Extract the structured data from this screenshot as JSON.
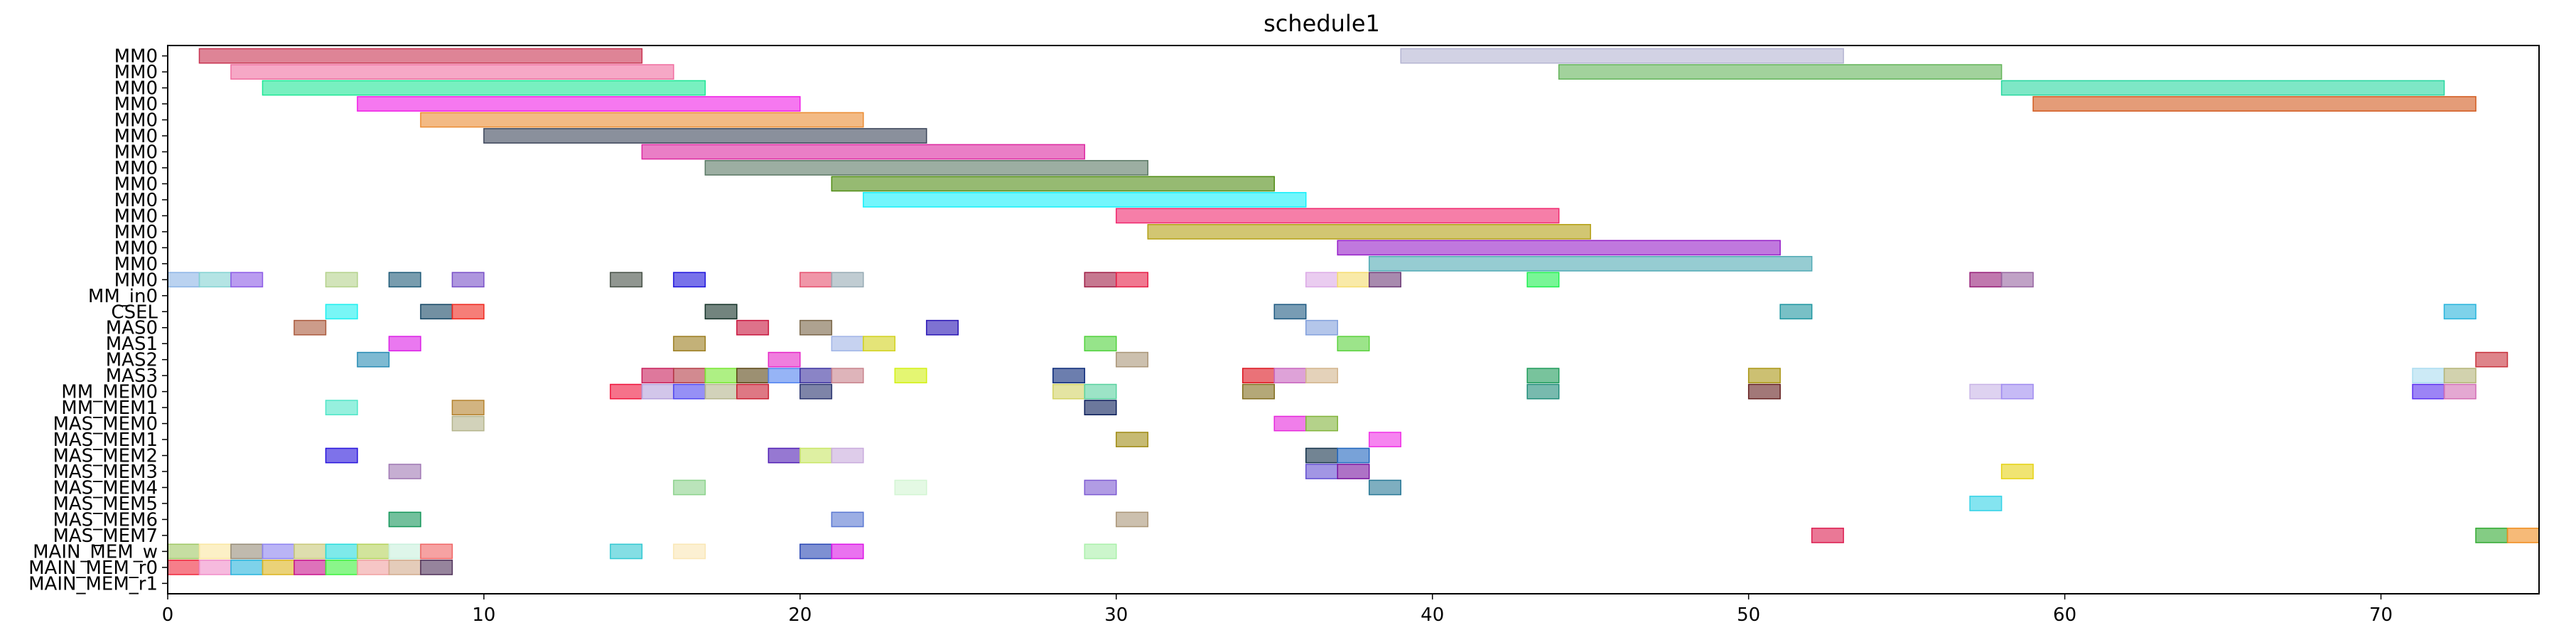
{
  "chart_data": {
    "type": "gantt",
    "title": "schedule1",
    "xlim": [
      0,
      75
    ],
    "x_ticks": [
      0,
      10,
      20,
      30,
      40,
      50,
      60,
      70
    ],
    "grid": false,
    "legend": "none",
    "rows": [
      "MM0",
      "MM0",
      "MM0",
      "MM0",
      "MM0",
      "MM0",
      "MM0",
      "MM0",
      "MM0",
      "MM0",
      "MM0",
      "MM0",
      "MM0",
      "MM0",
      "MM0",
      "MM_in0",
      "CSEL",
      "MAS0",
      "MAS1",
      "MAS2",
      "MAS3",
      "MM_MEM0",
      "MM_MEM1",
      "MAS_MEM0",
      "MAS_MEM1",
      "MAS_MEM2",
      "MAS_MEM3",
      "MAS_MEM4",
      "MAS_MEM5",
      "MAS_MEM6",
      "MAS_MEM7",
      "MAIN_MEM_w",
      "MAIN_MEM_r0",
      "MAIN_MEM_r1"
    ],
    "tasks": [
      {
        "row": 0,
        "start": 1,
        "end": 15,
        "color": "#c83250"
      },
      {
        "row": 0,
        "start": 39,
        "end": 53,
        "color": "#b4b4d2"
      },
      {
        "row": 1,
        "start": 2,
        "end": 16,
        "color": "#f06ea0"
      },
      {
        "row": 1,
        "start": 44,
        "end": 58,
        "color": "#64b45a"
      },
      {
        "row": 2,
        "start": 3,
        "end": 17,
        "color": "#1ee696"
      },
      {
        "row": 2,
        "start": 58,
        "end": 72,
        "color": "#28d7a0"
      },
      {
        "row": 3,
        "start": 6,
        "end": 20,
        "color": "#f01ee6"
      },
      {
        "row": 3,
        "start": 59,
        "end": 73,
        "color": "#d25a1e"
      },
      {
        "row": 4,
        "start": 8,
        "end": 22,
        "color": "#eb8c32"
      },
      {
        "row": 5,
        "start": 10,
        "end": 24,
        "color": "#3c465a"
      },
      {
        "row": 6,
        "start": 15,
        "end": 29,
        "color": "#dc28a0"
      },
      {
        "row": 7,
        "start": 17,
        "end": 31,
        "color": "#5a7864"
      },
      {
        "row": 8,
        "start": 21,
        "end": 35,
        "color": "#508c14"
      },
      {
        "row": 9,
        "start": 22,
        "end": 36,
        "color": "#14f0fa"
      },
      {
        "row": 10,
        "start": 30,
        "end": 44,
        "color": "#f0286e"
      },
      {
        "row": 11,
        "start": 31,
        "end": 45,
        "color": "#b4a014"
      },
      {
        "row": 12,
        "start": 37,
        "end": 51,
        "color": "#961ec8"
      },
      {
        "row": 13,
        "start": 38,
        "end": 52,
        "color": "#50aab4"
      },
      {
        "row": 14,
        "start": 0,
        "end": 1,
        "color": "#8cb4e6"
      },
      {
        "row": 14,
        "start": 1,
        "end": 2,
        "color": "#82d2d2"
      },
      {
        "row": 14,
        "start": 2,
        "end": 3,
        "color": "#8c5ae6"
      },
      {
        "row": 14,
        "start": 5,
        "end": 6,
        "color": "#b4d28c"
      },
      {
        "row": 14,
        "start": 7,
        "end": 8,
        "color": "#1e5a78"
      },
      {
        "row": 14,
        "start": 9,
        "end": 10,
        "color": "#7850c8"
      },
      {
        "row": 14,
        "start": 14,
        "end": 15,
        "color": "#465046"
      },
      {
        "row": 14,
        "start": 16,
        "end": 17,
        "color": "#1e14dc"
      },
      {
        "row": 14,
        "start": 20,
        "end": 21,
        "color": "#e6506e"
      },
      {
        "row": 14,
        "start": 21,
        "end": 22,
        "color": "#96aab4"
      },
      {
        "row": 14,
        "start": 29,
        "end": 30,
        "color": "#a01e46"
      },
      {
        "row": 14,
        "start": 30,
        "end": 31,
        "color": "#e61e46"
      },
      {
        "row": 14,
        "start": 36,
        "end": 37,
        "color": "#dcaae6"
      },
      {
        "row": 14,
        "start": 37,
        "end": 38,
        "color": "#f5dc6e"
      },
      {
        "row": 14,
        "start": 38,
        "end": 39,
        "color": "#6e3c78"
      },
      {
        "row": 14,
        "start": 43,
        "end": 44,
        "color": "#1ef050"
      },
      {
        "row": 14,
        "start": 57,
        "end": 58,
        "color": "#961e78"
      },
      {
        "row": 14,
        "start": 58,
        "end": 59,
        "color": "#9664a0"
      },
      {
        "row": 16,
        "start": 5,
        "end": 6,
        "color": "#1ef0f0"
      },
      {
        "row": 16,
        "start": 8,
        "end": 9,
        "color": "#144664"
      },
      {
        "row": 16,
        "start": 9,
        "end": 10,
        "color": "#f0281e"
      },
      {
        "row": 16,
        "start": 17,
        "end": 18,
        "color": "#143228"
      },
      {
        "row": 16,
        "start": 35,
        "end": 36,
        "color": "#1e5a82"
      },
      {
        "row": 16,
        "start": 51,
        "end": 52,
        "color": "#1e96a0"
      },
      {
        "row": 16,
        "start": 72,
        "end": 73,
        "color": "#28b4dc"
      },
      {
        "row": 17,
        "start": 4,
        "end": 5,
        "color": "#aa5a3c"
      },
      {
        "row": 17,
        "start": 18,
        "end": 19,
        "color": "#c8143c"
      },
      {
        "row": 17,
        "start": 20,
        "end": 21,
        "color": "#786446"
      },
      {
        "row": 17,
        "start": 24,
        "end": 25,
        "color": "#2814b4"
      },
      {
        "row": 17,
        "start": 36,
        "end": 37,
        "color": "#82a0dc"
      },
      {
        "row": 18,
        "start": 7,
        "end": 8,
        "color": "#dc1ee6"
      },
      {
        "row": 18,
        "start": 16,
        "end": 17,
        "color": "#9b7d1e"
      },
      {
        "row": 18,
        "start": 21,
        "end": 22,
        "color": "#a0b4e6"
      },
      {
        "row": 18,
        "start": 22,
        "end": 23,
        "color": "#d2d21e"
      },
      {
        "row": 18,
        "start": 29,
        "end": 30,
        "color": "#50d23c"
      },
      {
        "row": 18,
        "start": 37,
        "end": 38,
        "color": "#5ad23c"
      },
      {
        "row": 19,
        "start": 6,
        "end": 7,
        "color": "#288cb4"
      },
      {
        "row": 19,
        "start": 19,
        "end": 20,
        "color": "#e628c8"
      },
      {
        "row": 19,
        "start": 30,
        "end": 31,
        "color": "#aa9678"
      },
      {
        "row": 19,
        "start": 73,
        "end": 74,
        "color": "#c8323c"
      },
      {
        "row": 20,
        "start": 15,
        "end": 16,
        "color": "#c81e5a"
      },
      {
        "row": 20,
        "start": 16,
        "end": 17,
        "color": "#b43c46"
      },
      {
        "row": 20,
        "start": 17,
        "end": 18,
        "color": "#78e632"
      },
      {
        "row": 20,
        "start": 18,
        "end": 19,
        "color": "#5a4614"
      },
      {
        "row": 20,
        "start": 19,
        "end": 20,
        "color": "#5082f0"
      },
      {
        "row": 20,
        "start": 20,
        "end": 21,
        "color": "#3c32a0"
      },
      {
        "row": 20,
        "start": 21,
        "end": 22,
        "color": "#c8828c"
      },
      {
        "row": 20,
        "start": 23,
        "end": 24,
        "color": "#d2f014"
      },
      {
        "row": 20,
        "start": 28,
        "end": 29,
        "color": "#0a2878"
      },
      {
        "row": 20,
        "start": 34,
        "end": 35,
        "color": "#dc141e"
      },
      {
        "row": 20,
        "start": 35,
        "end": 36,
        "color": "#c864be"
      },
      {
        "row": 20,
        "start": 36,
        "end": 37,
        "color": "#d2b48c"
      },
      {
        "row": 20,
        "start": 43,
        "end": 44,
        "color": "#1e9b5a"
      },
      {
        "row": 20,
        "start": 50,
        "end": 51,
        "color": "#aa9614"
      },
      {
        "row": 20,
        "start": 71,
        "end": 72,
        "color": "#aadcf0"
      },
      {
        "row": 20,
        "start": 72,
        "end": 73,
        "color": "#b4b478"
      },
      {
        "row": 21,
        "start": 14,
        "end": 15,
        "color": "#f0143c"
      },
      {
        "row": 21,
        "start": 15,
        "end": 16,
        "color": "#b4a0dc"
      },
      {
        "row": 21,
        "start": 16,
        "end": 17,
        "color": "#5046f0"
      },
      {
        "row": 21,
        "start": 17,
        "end": 18,
        "color": "#b4b48c"
      },
      {
        "row": 21,
        "start": 18,
        "end": 19,
        "color": "#c81e32"
      },
      {
        "row": 21,
        "start": 20,
        "end": 21,
        "color": "#28326e"
      },
      {
        "row": 21,
        "start": 28,
        "end": 29,
        "color": "#d2d264"
      },
      {
        "row": 21,
        "start": 29,
        "end": 30,
        "color": "#5ad2a0"
      },
      {
        "row": 21,
        "start": 34,
        "end": 35,
        "color": "#826e1e"
      },
      {
        "row": 21,
        "start": 43,
        "end": 44,
        "color": "#1e8c78"
      },
      {
        "row": 21,
        "start": 50,
        "end": 51,
        "color": "#641e1e"
      },
      {
        "row": 21,
        "start": 57,
        "end": 58,
        "color": "#c8b4e6"
      },
      {
        "row": 21,
        "start": 58,
        "end": 59,
        "color": "#a08cf0"
      },
      {
        "row": 21,
        "start": 71,
        "end": 72,
        "color": "#5a32f0"
      },
      {
        "row": 21,
        "start": 72,
        "end": 73,
        "color": "#d26eb4"
      },
      {
        "row": 22,
        "start": 5,
        "end": 6,
        "color": "#50e6c8"
      },
      {
        "row": 22,
        "start": 9,
        "end": 10,
        "color": "#b4822d"
      },
      {
        "row": 22,
        "start": 29,
        "end": 30,
        "color": "#0a1e5a"
      },
      {
        "row": 23,
        "start": 9,
        "end": 10,
        "color": "#b4b48c"
      },
      {
        "row": 23,
        "start": 35,
        "end": 36,
        "color": "#e628dc"
      },
      {
        "row": 23,
        "start": 36,
        "end": 37,
        "color": "#82b43c"
      },
      {
        "row": 24,
        "start": 30,
        "end": 31,
        "color": "#a08c14"
      },
      {
        "row": 24,
        "start": 38,
        "end": 39,
        "color": "#f032e6"
      },
      {
        "row": 25,
        "start": 5,
        "end": 6,
        "color": "#2814dc"
      },
      {
        "row": 25,
        "start": 19,
        "end": 20,
        "color": "#501eb4"
      },
      {
        "row": 25,
        "start": 20,
        "end": 21,
        "color": "#c8e664"
      },
      {
        "row": 25,
        "start": 21,
        "end": 22,
        "color": "#c8aadc"
      },
      {
        "row": 25,
        "start": 36,
        "end": 37,
        "color": "#14324b"
      },
      {
        "row": 25,
        "start": 37,
        "end": 38,
        "color": "#1e64be"
      },
      {
        "row": 26,
        "start": 7,
        "end": 8,
        "color": "#a078b4"
      },
      {
        "row": 26,
        "start": 36,
        "end": 37,
        "color": "#6450d2"
      },
      {
        "row": 26,
        "start": 37,
        "end": 38,
        "color": "#7814a0"
      },
      {
        "row": 26,
        "start": 58,
        "end": 59,
        "color": "#e6d214"
      },
      {
        "row": 27,
        "start": 16,
        "end": 17,
        "color": "#8cd28c"
      },
      {
        "row": 27,
        "start": 23,
        "end": 24,
        "color": "#d2f5d2"
      },
      {
        "row": 27,
        "start": 29,
        "end": 30,
        "color": "#7d5ad2"
      },
      {
        "row": 27,
        "start": 38,
        "end": 39,
        "color": "#287896"
      },
      {
        "row": 28,
        "start": 57,
        "end": 58,
        "color": "#32d2e6"
      },
      {
        "row": 29,
        "start": 7,
        "end": 8,
        "color": "#14965a"
      },
      {
        "row": 29,
        "start": 21,
        "end": 22,
        "color": "#5a78d2"
      },
      {
        "row": 29,
        "start": 30,
        "end": 31,
        "color": "#aa9678"
      },
      {
        "row": 30,
        "start": 52,
        "end": 53,
        "color": "#dc1e50"
      },
      {
        "row": 30,
        "start": 73,
        "end": 74,
        "color": "#32aa32"
      },
      {
        "row": 30,
        "start": 74,
        "end": 75,
        "color": "#f08c1e"
      },
      {
        "row": 31,
        "start": 0,
        "end": 1,
        "color": "#a0c864"
      },
      {
        "row": 31,
        "start": 1,
        "end": 2,
        "color": "#fae6a0"
      },
      {
        "row": 31,
        "start": 2,
        "end": 3,
        "color": "#968c78"
      },
      {
        "row": 31,
        "start": 3,
        "end": 4,
        "color": "#8c82f0"
      },
      {
        "row": 31,
        "start": 4,
        "end": 5,
        "color": "#c8c878"
      },
      {
        "row": 31,
        "start": 5,
        "end": 6,
        "color": "#28dcdc"
      },
      {
        "row": 31,
        "start": 6,
        "end": 7,
        "color": "#b4d25a"
      },
      {
        "row": 31,
        "start": 7,
        "end": 8,
        "color": "#c8f0dc"
      },
      {
        "row": 31,
        "start": 8,
        "end": 9,
        "color": "#f06464"
      },
      {
        "row": 31,
        "start": 14,
        "end": 15,
        "color": "#32c8d2"
      },
      {
        "row": 31,
        "start": 16,
        "end": 17,
        "color": "#fae6b4"
      },
      {
        "row": 31,
        "start": 20,
        "end": 21,
        "color": "#2846b4"
      },
      {
        "row": 31,
        "start": 21,
        "end": 22,
        "color": "#dc14e6"
      },
      {
        "row": 31,
        "start": 29,
        "end": 30,
        "color": "#aaf0aa"
      },
      {
        "row": 32,
        "start": 0,
        "end": 1,
        "color": "#f0283c"
      },
      {
        "row": 32,
        "start": 1,
        "end": 2,
        "color": "#f08cc8"
      },
      {
        "row": 32,
        "start": 2,
        "end": 3,
        "color": "#28b4dc"
      },
      {
        "row": 32,
        "start": 3,
        "end": 4,
        "color": "#dcb41e"
      },
      {
        "row": 32,
        "start": 4,
        "end": 5,
        "color": "#c8148c"
      },
      {
        "row": 32,
        "start": 5,
        "end": 6,
        "color": "#3cf03c"
      },
      {
        "row": 32,
        "start": 6,
        "end": 7,
        "color": "#f0a0a0"
      },
      {
        "row": 32,
        "start": 7,
        "end": 8,
        "color": "#d2aa8c"
      },
      {
        "row": 32,
        "start": 8,
        "end": 9,
        "color": "#50325a"
      }
    ]
  }
}
